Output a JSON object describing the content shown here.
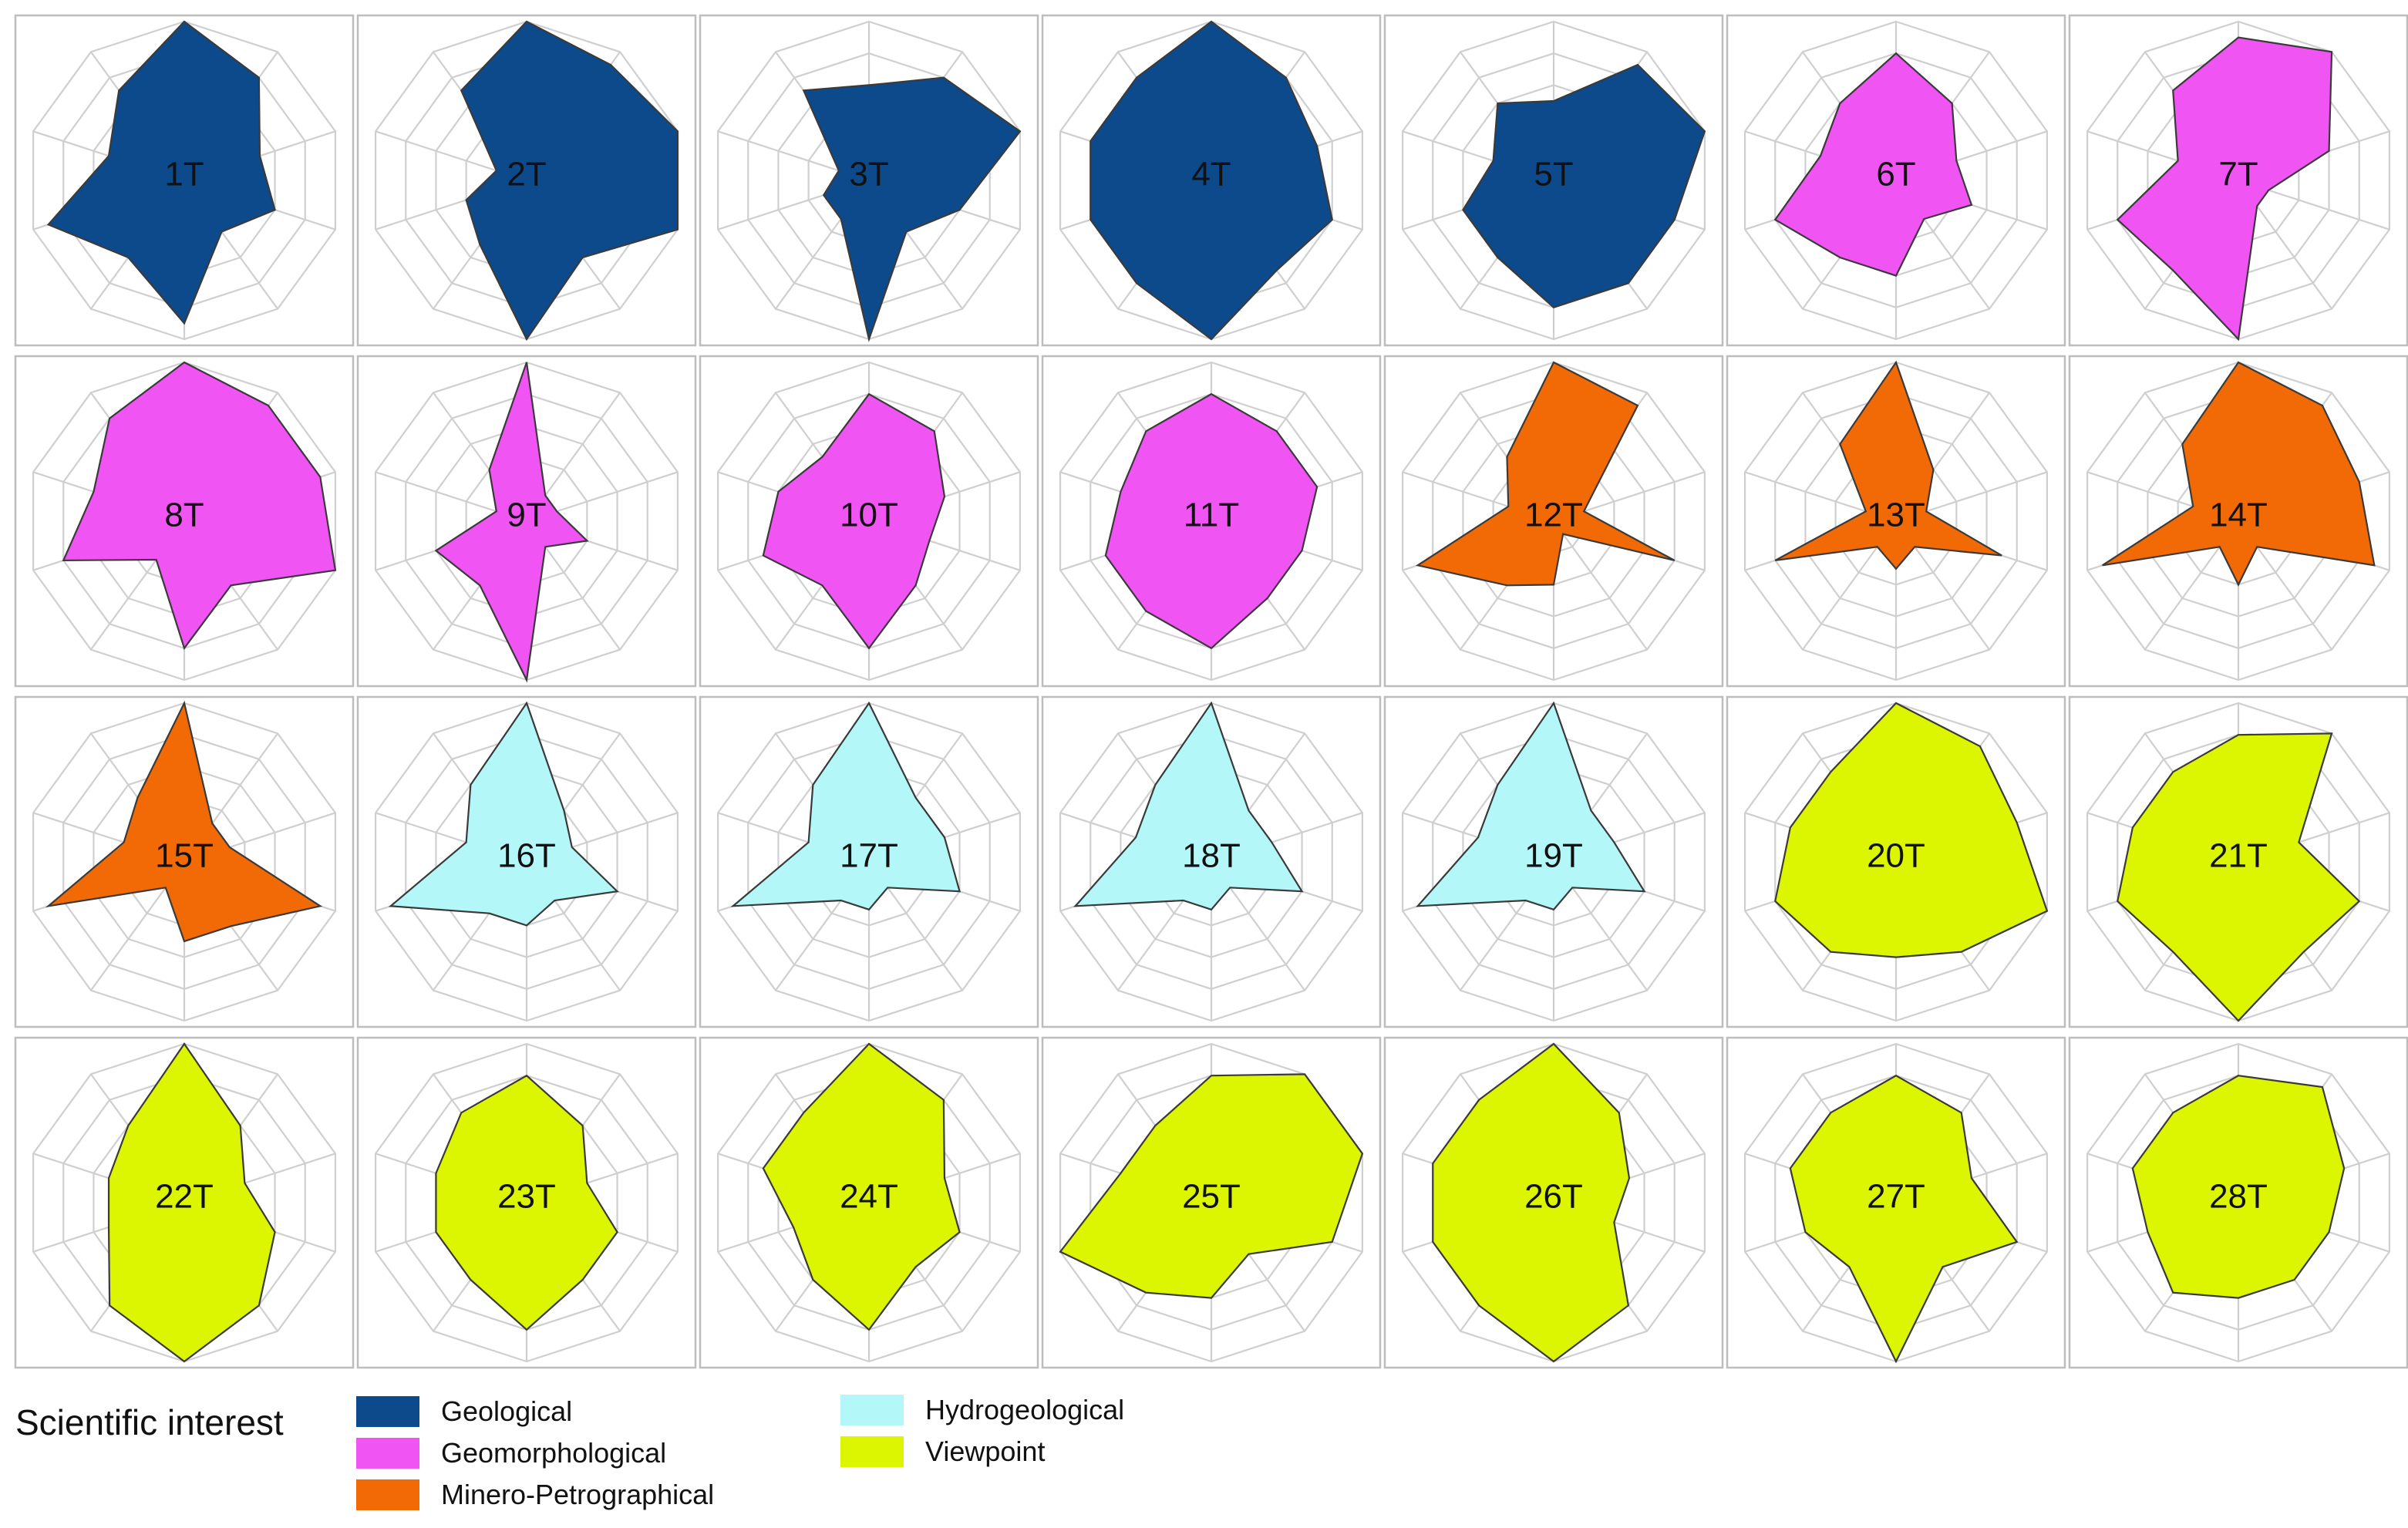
{
  "chart_data": {
    "type": "radar",
    "axes_count": 10,
    "rings": 5,
    "r_max": 10,
    "grid": true,
    "legend_position": "bottom-left",
    "legend_title": "Scientific interest",
    "categories": [
      {
        "id": "geological",
        "label": "Geological",
        "color": "#0d4a8b"
      },
      {
        "id": "geomorphological",
        "label": "Geomorphological",
        "color": "#f055f4"
      },
      {
        "id": "minero",
        "label": "Minero-Petrographical",
        "color": "#f26a05"
      },
      {
        "id": "hydro",
        "label": "Hydrogeological",
        "color": "#b3f7f9"
      },
      {
        "id": "viewpoint",
        "label": "Viewpoint",
        "color": "#dcf500"
      }
    ],
    "sites": [
      {
        "label": "1T",
        "category": "geological",
        "values": [
          10,
          8,
          5,
          6,
          4,
          9,
          6,
          9,
          5,
          7
        ]
      },
      {
        "label": "2T",
        "category": "geological",
        "values": [
          10,
          9,
          10,
          10,
          6,
          10,
          5,
          4,
          2,
          7
        ]
      },
      {
        "label": "3T",
        "category": "geological",
        "values": [
          6,
          8,
          10,
          6,
          4,
          10,
          3,
          3,
          2,
          7
        ]
      },
      {
        "label": "4T",
        "category": "geological",
        "values": [
          10,
          8,
          7,
          8,
          7,
          10,
          8,
          8,
          8,
          8
        ]
      },
      {
        "label": "5T",
        "category": "geological",
        "values": [
          5,
          9,
          10,
          8,
          8,
          8,
          6,
          6,
          4,
          6
        ]
      },
      {
        "label": "6T",
        "category": "geomorphological",
        "values": [
          8,
          6,
          4,
          5,
          3,
          6,
          6,
          8,
          5,
          6
        ]
      },
      {
        "label": "7T",
        "category": "geomorphological",
        "values": [
          9,
          10,
          6,
          2,
          2,
          10,
          7,
          8,
          4,
          7
        ]
      },
      {
        "label": "8T",
        "category": "geomorphological",
        "values": [
          10,
          9,
          9,
          10,
          5,
          8,
          3,
          8,
          6,
          8
        ]
      },
      {
        "label": "9T",
        "category": "geomorphological",
        "values": [
          10,
          2,
          2,
          4,
          2,
          10,
          5,
          6,
          2,
          4
        ]
      },
      {
        "label": "10T",
        "category": "geomorphological",
        "values": [
          8,
          7,
          5,
          4,
          5,
          8,
          5,
          7,
          6,
          5
        ]
      },
      {
        "label": "11T",
        "category": "geomorphological",
        "values": [
          8,
          7,
          7,
          6,
          6,
          8,
          7,
          7,
          6,
          7
        ]
      },
      {
        "label": "12T",
        "category": "minero",
        "values": [
          10,
          9,
          2,
          8,
          1,
          4,
          5,
          9,
          3,
          5
        ]
      },
      {
        "label": "13T",
        "category": "minero",
        "values": [
          10,
          4,
          2,
          7,
          2,
          3,
          2,
          8,
          2,
          6
        ]
      },
      {
        "label": "14T",
        "category": "minero",
        "values": [
          10,
          9,
          8,
          9,
          2,
          4,
          2,
          9,
          3,
          6
        ]
      },
      {
        "label": "15T",
        "category": "minero",
        "values": [
          10,
          3,
          3,
          9,
          5,
          5,
          2,
          9,
          4,
          5
        ]
      },
      {
        "label": "16T",
        "category": "hydro",
        "values": [
          10,
          4,
          3,
          6,
          3,
          4,
          4,
          9,
          4,
          6
        ]
      },
      {
        "label": "17T",
        "category": "hydro",
        "values": [
          10,
          5,
          5,
          6,
          2,
          3,
          3,
          9,
          4,
          6
        ]
      },
      {
        "label": "18T",
        "category": "hydro",
        "values": [
          10,
          4,
          4,
          6,
          2,
          3,
          3,
          9,
          5,
          6
        ]
      },
      {
        "label": "19T",
        "category": "hydro",
        "values": [
          10,
          4,
          4,
          6,
          2,
          3,
          3,
          9,
          5,
          6
        ]
      },
      {
        "label": "20T",
        "category": "viewpoint",
        "values": [
          10,
          9,
          8,
          10,
          7,
          6,
          7,
          8,
          7,
          7
        ]
      },
      {
        "label": "21T",
        "category": "viewpoint",
        "values": [
          8,
          10,
          4,
          8,
          7,
          10,
          7,
          8,
          7,
          7
        ]
      },
      {
        "label": "22T",
        "category": "viewpoint",
        "values": [
          10,
          6,
          4,
          6,
          8,
          10,
          8,
          5,
          5,
          6
        ]
      },
      {
        "label": "23T",
        "category": "viewpoint",
        "values": [
          8,
          6,
          4,
          6,
          6,
          8,
          6,
          6,
          6,
          7
        ]
      },
      {
        "label": "24T",
        "category": "viewpoint",
        "values": [
          10,
          8,
          5,
          6,
          5,
          8,
          6,
          5,
          7,
          7
        ]
      },
      {
        "label": "25T",
        "category": "viewpoint",
        "values": [
          8,
          10,
          10,
          8,
          4,
          6,
          7,
          10,
          6,
          6
        ]
      },
      {
        "label": "26T",
        "category": "viewpoint",
        "values": [
          10,
          7,
          5,
          4,
          8,
          10,
          8,
          8,
          8,
          8
        ]
      },
      {
        "label": "27T",
        "category": "viewpoint",
        "values": [
          8,
          7,
          5,
          8,
          5,
          10,
          5,
          6,
          7,
          7
        ]
      },
      {
        "label": "28T",
        "category": "viewpoint",
        "values": [
          8,
          9,
          7,
          6,
          6,
          6,
          7,
          6,
          7,
          7
        ]
      }
    ]
  }
}
